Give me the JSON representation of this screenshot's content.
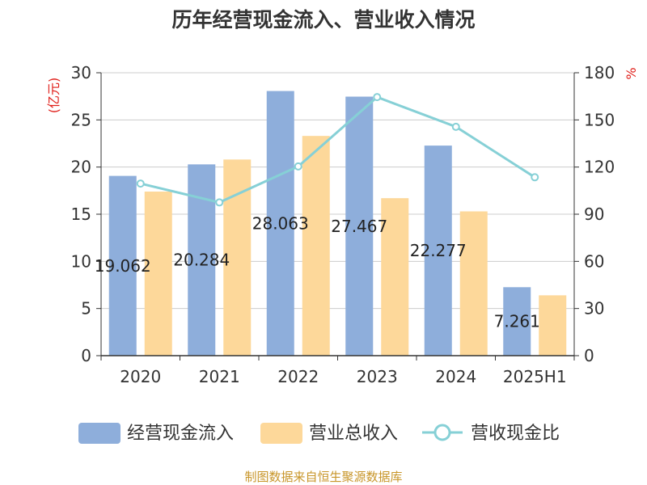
{
  "title": "历年经营现金流入、营业收入情况",
  "source": "制图数据来自恒生聚源数据库",
  "chart_data": {
    "type": "bar",
    "categories": [
      "2020",
      "2021",
      "2022",
      "2023",
      "2024",
      "2025H1"
    ],
    "series": [
      {
        "name": "经营现金流入",
        "type": "bar",
        "axis": "left",
        "color": "#8eaedb",
        "values": [
          19.062,
          20.284,
          28.063,
          27.467,
          22.277,
          7.261
        ]
      },
      {
        "name": "营业总收入",
        "type": "bar",
        "axis": "left",
        "color": "#fdd89a",
        "values": [
          17.4,
          20.8,
          23.3,
          16.7,
          15.3,
          6.4
        ]
      },
      {
        "name": "营收现金比",
        "type": "line",
        "axis": "right",
        "color": "#86d0d6",
        "values": [
          109.5,
          97.5,
          120.4,
          164.5,
          145.6,
          113.5
        ]
      }
    ],
    "data_labels": [
      "19.062",
      "20.284",
      "28.063",
      "27.467",
      "22.277",
      "7.261"
    ],
    "y_left": {
      "label": "(亿元)",
      "min": 0,
      "max": 30,
      "ticks": [
        "0",
        "5",
        "10",
        "15",
        "20",
        "25",
        "30"
      ]
    },
    "y_right": {
      "label": "%",
      "min": 0,
      "max": 180,
      "ticks": [
        "0",
        "30",
        "60",
        "90",
        "120",
        "150",
        "180"
      ]
    },
    "grid": true,
    "legend_position": "bottom"
  }
}
